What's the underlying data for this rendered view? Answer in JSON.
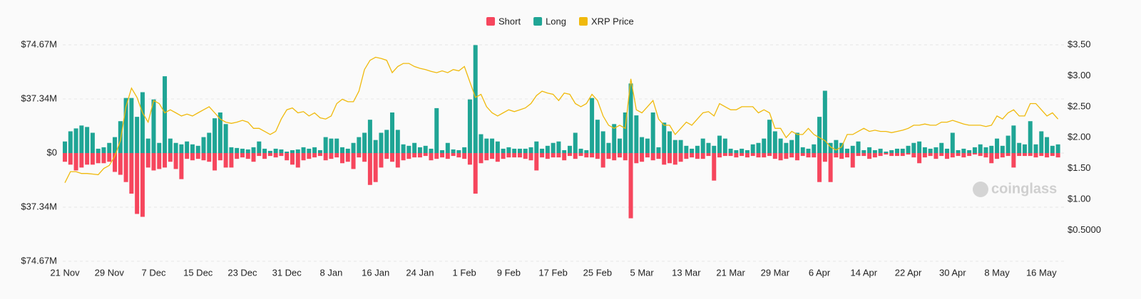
{
  "chart_data": {
    "type": "bar-line",
    "categories": [
      "21 Nov",
      null,
      null,
      null,
      null,
      null,
      null,
      null,
      "29 Nov",
      null,
      null,
      null,
      null,
      null,
      null,
      null,
      "7 Dec",
      null,
      null,
      null,
      null,
      null,
      null,
      null,
      "15 Dec",
      null,
      null,
      null,
      null,
      null,
      null,
      null,
      "23 Dec",
      null,
      null,
      null,
      null,
      null,
      null,
      null,
      "31 Dec",
      null,
      null,
      null,
      null,
      null,
      null,
      null,
      "8 Jan",
      null,
      null,
      null,
      null,
      null,
      null,
      null,
      "16 Jan",
      null,
      null,
      null,
      null,
      null,
      null,
      null,
      "24 Jan",
      null,
      null,
      null,
      null,
      null,
      null,
      null,
      "1 Feb",
      null,
      null,
      null,
      null,
      null,
      null,
      null,
      "9 Feb",
      null,
      null,
      null,
      null,
      null,
      null,
      null,
      "17 Feb",
      null,
      null,
      null,
      null,
      null,
      null,
      null,
      "25 Feb",
      null,
      null,
      null,
      null,
      null,
      null,
      null,
      "5 Mar",
      null,
      null,
      null,
      null,
      null,
      null,
      null,
      "13 Mar",
      null,
      null,
      null,
      null,
      null,
      null,
      null,
      "21 Mar",
      null,
      null,
      null,
      null,
      null,
      null,
      null,
      "29 Mar",
      null,
      null,
      null,
      null,
      null,
      null,
      null,
      "6 Apr",
      null,
      null,
      null,
      null,
      null,
      null,
      null,
      "14 Apr",
      null,
      null,
      null,
      null,
      null,
      null,
      null,
      "22 Apr",
      null,
      null,
      null,
      null,
      null,
      null,
      null,
      "30 Apr",
      null,
      null,
      null,
      null,
      null,
      null,
      null,
      "8 May",
      null,
      null,
      null,
      null,
      null,
      null,
      null,
      "16 May",
      null,
      null,
      null
    ],
    "series": [
      {
        "name": "Short",
        "color": "#f6465d",
        "values": [
          -6,
          -8,
          -12,
          -10,
          -8,
          -8,
          -7,
          -7,
          -6,
          -13,
          -15,
          -20,
          -28,
          -42,
          -44,
          -10,
          -12,
          -11,
          -10,
          -6,
          -11,
          -18,
          -4,
          -5,
          -4,
          -5,
          -6,
          -12,
          -5,
          -10,
          -10,
          -4,
          -3,
          -4,
          -6,
          -2,
          -4,
          -2,
          -3,
          -2,
          -5,
          -8,
          -10,
          -5,
          -4,
          -3,
          -2,
          -5,
          -4,
          -3,
          -7,
          -6,
          -11,
          -3,
          -6,
          -22,
          -20,
          -10,
          -4,
          -6,
          -10,
          -5,
          -4,
          -3,
          -3,
          -2,
          -5,
          -4,
          -3,
          -4,
          -2,
          -3,
          -4,
          -8,
          -28,
          -7,
          -5,
          -4,
          -6,
          -4,
          -3,
          -3,
          -3,
          -4,
          -5,
          -12,
          -3,
          -4,
          -3,
          -3,
          -5,
          -2,
          -4,
          -2,
          -3,
          -3,
          -4,
          -10,
          -4,
          -5,
          -3,
          -5,
          -45,
          -7,
          -6,
          -3,
          -5,
          -4,
          -8,
          -7,
          -8,
          -6,
          -4,
          -3,
          -4,
          -4,
          -2,
          -19,
          -3,
          -2,
          -2,
          -3,
          -2,
          -3,
          -2,
          -3,
          -3,
          -2,
          -4,
          -5,
          -4,
          -3,
          -5,
          -2,
          -3,
          -3,
          -20,
          -6,
          -20,
          -3,
          -4,
          -3,
          -10,
          -2,
          -2,
          -4,
          -3,
          -2,
          -1,
          -2,
          -2,
          -2,
          -1,
          -3,
          -7,
          -3,
          -2,
          -4,
          -2,
          -4,
          -3,
          -2,
          -3,
          -2,
          -1,
          -2,
          -3,
          -7,
          -4,
          -3,
          -2,
          -10,
          -2,
          -2,
          -2,
          -3,
          -2,
          -3,
          -2,
          -3
        ]
      },
      {
        "name": "Long",
        "color": "#1fa595",
        "values": [
          8,
          15,
          17,
          19,
          18,
          14,
          3,
          4,
          7,
          11,
          22,
          38,
          38,
          25,
          42,
          10,
          37,
          7,
          53,
          10,
          7,
          6,
          8,
          6,
          5,
          11,
          14,
          24,
          28,
          20,
          4,
          3.5,
          3,
          2.5,
          4,
          8,
          3,
          1.5,
          3,
          2.5,
          1,
          2,
          2.5,
          4,
          3,
          4,
          2,
          11,
          10,
          10,
          4,
          3,
          7,
          11,
          14,
          23,
          9,
          14,
          16,
          28,
          16,
          6,
          5,
          7,
          4,
          5,
          3,
          31,
          2,
          7,
          2.5,
          2,
          4,
          37,
          74.5,
          13,
          10,
          10,
          8,
          3,
          4,
          3,
          3,
          3,
          4,
          8,
          3,
          5,
          7,
          8,
          2,
          5,
          14,
          3,
          2,
          38,
          23,
          15,
          7,
          20,
          10,
          28,
          48,
          26,
          11,
          10,
          28,
          4,
          21,
          15,
          9,
          9,
          5,
          3,
          5,
          10,
          7,
          5,
          12,
          10,
          3,
          2,
          3,
          2,
          6,
          7,
          10,
          23,
          15,
          10,
          7,
          9,
          14,
          4,
          3,
          6,
          25,
          43,
          7,
          9,
          7,
          3,
          5,
          8,
          2,
          4,
          2,
          3,
          1,
          2,
          3,
          3,
          5,
          7,
          8,
          4,
          3,
          4,
          7,
          3,
          14,
          2,
          3,
          2,
          4,
          6,
          4,
          5,
          10,
          5,
          12,
          19,
          7,
          6,
          22,
          6,
          15,
          11,
          5,
          6
        ]
      },
      {
        "name": "XRP Price",
        "color": "#f0b90b",
        "axis": "y2",
        "values": [
          1.27,
          1.45,
          1.45,
          1.42,
          1.42,
          1.41,
          1.4,
          1.5,
          1.55,
          1.7,
          1.95,
          2.5,
          2.8,
          2.65,
          2.4,
          2.25,
          2.6,
          2.55,
          2.4,
          2.45,
          2.4,
          2.35,
          2.38,
          2.35,
          2.4,
          2.45,
          2.5,
          2.4,
          2.3,
          2.25,
          2.23,
          2.25,
          2.28,
          2.25,
          2.15,
          2.15,
          2.1,
          2.05,
          2.1,
          2.3,
          2.45,
          2.48,
          2.4,
          2.42,
          2.35,
          2.4,
          2.32,
          2.3,
          2.35,
          2.55,
          2.62,
          2.58,
          2.58,
          2.75,
          3.1,
          3.25,
          3.3,
          3.28,
          3.25,
          3.05,
          3.15,
          3.2,
          3.2,
          3.15,
          3.12,
          3.1,
          3.07,
          3.05,
          3.08,
          3.05,
          3.1,
          3.08,
          3.15,
          2.9,
          2.65,
          2.7,
          2.5,
          2.4,
          2.35,
          2.4,
          2.45,
          2.42,
          2.45,
          2.48,
          2.55,
          2.68,
          2.75,
          2.72,
          2.7,
          2.6,
          2.72,
          2.7,
          2.55,
          2.5,
          2.55,
          2.7,
          2.6,
          2.35,
          2.2,
          2.15,
          2.2,
          2.15,
          2.95,
          2.45,
          2.4,
          2.5,
          2.6,
          2.3,
          2.2,
          2.2,
          2.05,
          2.15,
          2.25,
          2.2,
          2.3,
          2.4,
          2.42,
          2.35,
          2.55,
          2.5,
          2.45,
          2.45,
          2.5,
          2.5,
          2.5,
          2.4,
          2.45,
          2.4,
          2.15,
          2.15,
          2.0,
          2.1,
          2.05,
          2.05,
          2.15,
          2.05,
          2.0,
          1.95,
          1.85,
          1.8,
          1.85,
          2.05,
          2.05,
          2.1,
          2.15,
          2.1,
          2.12,
          2.1,
          2.1,
          2.08,
          2.1,
          2.12,
          2.15,
          2.2,
          2.2,
          2.22,
          2.2,
          2.2,
          2.25,
          2.25,
          2.28,
          2.25,
          2.22,
          2.2,
          2.2,
          2.2,
          2.18,
          2.2,
          2.35,
          2.3,
          2.4,
          2.45,
          2.35,
          2.35,
          2.55,
          2.55,
          2.45,
          2.35,
          2.4,
          2.3
        ]
      }
    ],
    "ylim": [
      -74.67,
      74.67
    ],
    "yticks": [
      {
        "value": -74.67,
        "label": "$74.67M"
      },
      {
        "value": -37.34,
        "label": "$37.34M"
      },
      {
        "value": 0,
        "label": "$0"
      },
      {
        "value": 37.34,
        "label": "$37.34M"
      },
      {
        "value": 74.67,
        "label": "$74.67M"
      }
    ],
    "y2lim": [
      0,
      3.5
    ],
    "y2ticks": [
      {
        "value": 0.5,
        "label": "$0.5000"
      },
      {
        "value": 1,
        "label": "$1.00"
      },
      {
        "value": 1.5,
        "label": "$1.50"
      },
      {
        "value": 2,
        "label": "$2.00"
      },
      {
        "value": 2.5,
        "label": "$2.50"
      },
      {
        "value": 3,
        "label": "$3.00"
      },
      {
        "value": 3.5,
        "label": "$3.50"
      }
    ],
    "grid": true,
    "legend": "top",
    "watermark": "coinglass"
  }
}
